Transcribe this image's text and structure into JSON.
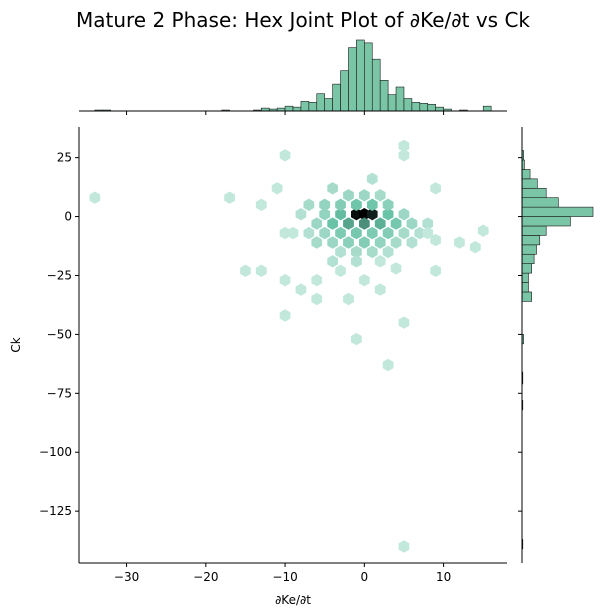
{
  "title": "Mature 2 Phase: Hex Joint Plot of ∂Ke/∂t vs Ck",
  "chart_data": {
    "type": "hexbin",
    "xlabel": "∂Ke/∂t",
    "ylabel": "Ck",
    "xlim": [
      -36,
      18
    ],
    "ylim": [
      -147,
      38
    ],
    "xticks": [
      -30,
      -20,
      -10,
      0,
      10
    ],
    "yticks": [
      25,
      0,
      -25,
      -50,
      -75,
      -100,
      -125
    ],
    "colors": {
      "hex_base": "#66c2a5",
      "hex_max": "#000000",
      "hist_fill": "#79c5a6",
      "hist_edge": "#1a1a1a"
    },
    "hexbins": [
      {
        "x": -1,
        "y": 1,
        "count": 30
      },
      {
        "x": 0,
        "y": 1,
        "count": 32
      },
      {
        "x": 1,
        "y": 1,
        "count": 28
      },
      {
        "x": -2,
        "y": -3,
        "count": 14
      },
      {
        "x": 0,
        "y": -3,
        "count": 16
      },
      {
        "x": 2,
        "y": -3,
        "count": 13
      },
      {
        "x": -3,
        "y": 1,
        "count": 12
      },
      {
        "x": 3,
        "y": 1,
        "count": 11
      },
      {
        "x": -1,
        "y": 5,
        "count": 10
      },
      {
        "x": 1,
        "y": 5,
        "count": 10
      },
      {
        "x": -4,
        "y": -3,
        "count": 11
      },
      {
        "x": 4,
        "y": -3,
        "count": 9
      },
      {
        "x": -3,
        "y": -7,
        "count": 8
      },
      {
        "x": -1,
        "y": -7,
        "count": 9
      },
      {
        "x": 1,
        "y": -7,
        "count": 8
      },
      {
        "x": 3,
        "y": -7,
        "count": 7
      },
      {
        "x": -5,
        "y": 5,
        "count": 5
      },
      {
        "x": 3,
        "y": 5,
        "count": 6
      },
      {
        "x": -3,
        "y": 5,
        "count": 7
      },
      {
        "x": -2,
        "y": -11,
        "count": 6
      },
      {
        "x": 0,
        "y": -11,
        "count": 7
      },
      {
        "x": 2,
        "y": -11,
        "count": 5
      },
      {
        "x": -6,
        "y": -3,
        "count": 4
      },
      {
        "x": 6,
        "y": -3,
        "count": 4
      },
      {
        "x": -5,
        "y": 1,
        "count": 5
      },
      {
        "x": 5,
        "y": 1,
        "count": 4
      },
      {
        "x": -4,
        "y": -11,
        "count": 4
      },
      {
        "x": 4,
        "y": -11,
        "count": 3
      },
      {
        "x": -5,
        "y": -7,
        "count": 4
      },
      {
        "x": 5,
        "y": -7,
        "count": 3
      },
      {
        "x": -2,
        "y": 9,
        "count": 4
      },
      {
        "x": 0,
        "y": 9,
        "count": 4
      },
      {
        "x": 2,
        "y": 9,
        "count": 3
      },
      {
        "x": -7,
        "y": 5,
        "count": 3
      },
      {
        "x": -4,
        "y": 12,
        "count": 3
      },
      {
        "x": 1,
        "y": 16,
        "count": 2
      },
      {
        "x": -6,
        "y": -11,
        "count": 3
      },
      {
        "x": 6,
        "y": -11,
        "count": 2
      },
      {
        "x": -1,
        "y": -15,
        "count": 3
      },
      {
        "x": 1,
        "y": -15,
        "count": 3
      },
      {
        "x": -3,
        "y": -15,
        "count": 2
      },
      {
        "x": 3,
        "y": -15,
        "count": 2
      },
      {
        "x": -7,
        "y": -7,
        "count": 2
      },
      {
        "x": 7,
        "y": -7,
        "count": 2
      },
      {
        "x": -8,
        "y": 1,
        "count": 2
      },
      {
        "x": 8,
        "y": -3,
        "count": 2
      },
      {
        "x": -10,
        "y": -7,
        "count": 1
      },
      {
        "x": 9,
        "y": -10,
        "count": 1
      },
      {
        "x": -1,
        "y": -19,
        "count": 2
      },
      {
        "x": -4,
        "y": -19,
        "count": 2
      },
      {
        "x": 2,
        "y": -19,
        "count": 1
      },
      {
        "x": 4,
        "y": -22,
        "count": 1
      },
      {
        "x": -3,
        "y": -23,
        "count": 1
      },
      {
        "x": 0,
        "y": -27,
        "count": 1
      },
      {
        "x": 2,
        "y": -31,
        "count": 1
      },
      {
        "x": -6,
        "y": -27,
        "count": 1
      },
      {
        "x": -8,
        "y": -31,
        "count": 1
      },
      {
        "x": -10,
        "y": -27,
        "count": 1
      },
      {
        "x": -13,
        "y": -23,
        "count": 1
      },
      {
        "x": -15,
        "y": -23,
        "count": 1
      },
      {
        "x": -10,
        "y": -42,
        "count": 1
      },
      {
        "x": -6,
        "y": -35,
        "count": 1
      },
      {
        "x": -2,
        "y": -35,
        "count": 1
      },
      {
        "x": -1,
        "y": -52,
        "count": 1
      },
      {
        "x": 5,
        "y": -45,
        "count": 1
      },
      {
        "x": 3,
        "y": -63,
        "count": 1
      },
      {
        "x": 5,
        "y": 30,
        "count": 1
      },
      {
        "x": -10,
        "y": 26,
        "count": 1
      },
      {
        "x": 5,
        "y": 26,
        "count": 1
      },
      {
        "x": 9,
        "y": 12,
        "count": 1
      },
      {
        "x": -11,
        "y": 12,
        "count": 1
      },
      {
        "x": -13,
        "y": 5,
        "count": 1
      },
      {
        "x": -9,
        "y": -7,
        "count": 1
      },
      {
        "x": 8,
        "y": -7,
        "count": 1
      },
      {
        "x": 12,
        "y": -11,
        "count": 1
      },
      {
        "x": 14,
        "y": -13,
        "count": 1
      },
      {
        "x": 15,
        "y": -6,
        "count": 1
      },
      {
        "x": 9,
        "y": -23,
        "count": 1
      },
      {
        "x": -17,
        "y": 8,
        "count": 1
      },
      {
        "x": -34,
        "y": 8,
        "count": 1
      },
      {
        "x": 5,
        "y": -140,
        "count": 1
      }
    ],
    "x_marginal": {
      "bin_edges": [
        -34,
        -33,
        -32,
        -31,
        -30,
        -29,
        -28,
        -27,
        -26,
        -25,
        -24,
        -23,
        -22,
        -21,
        -20,
        -19,
        -18,
        -17,
        -16,
        -15,
        -14,
        -13,
        -12,
        -11,
        -10,
        -9,
        -8,
        -7,
        -6,
        -5,
        -4,
        -3,
        -2,
        -1,
        0,
        1,
        2,
        3,
        4,
        5,
        6,
        7,
        8,
        9,
        10,
        11,
        12,
        13,
        14,
        15,
        16
      ],
      "counts": [
        1,
        1,
        0,
        0,
        0,
        0,
        0,
        0,
        0,
        0,
        0,
        0,
        0,
        0,
        0,
        0,
        1,
        0,
        0,
        0,
        1,
        3,
        2,
        3,
        5,
        4,
        10,
        9,
        18,
        13,
        28,
        42,
        66,
        74,
        71,
        54,
        32,
        17,
        25,
        13,
        9,
        8,
        7,
        4,
        2,
        0,
        1,
        0,
        0,
        5
      ]
    },
    "y_marginal": {
      "bin_edges": [
        -141,
        -137,
        -82,
        -78,
        -71,
        -66,
        -54,
        -50,
        -36,
        -32,
        -28,
        -24,
        -20,
        -16,
        -12,
        -8,
        -4,
        0,
        4,
        8,
        12,
        16,
        20,
        24,
        28
      ],
      "counts": [
        1,
        0,
        1,
        0,
        1,
        0,
        2,
        0,
        12,
        8,
        8,
        12,
        15,
        18,
        22,
        30,
        60,
        88,
        45,
        30,
        19,
        10,
        3,
        2
      ]
    }
  }
}
